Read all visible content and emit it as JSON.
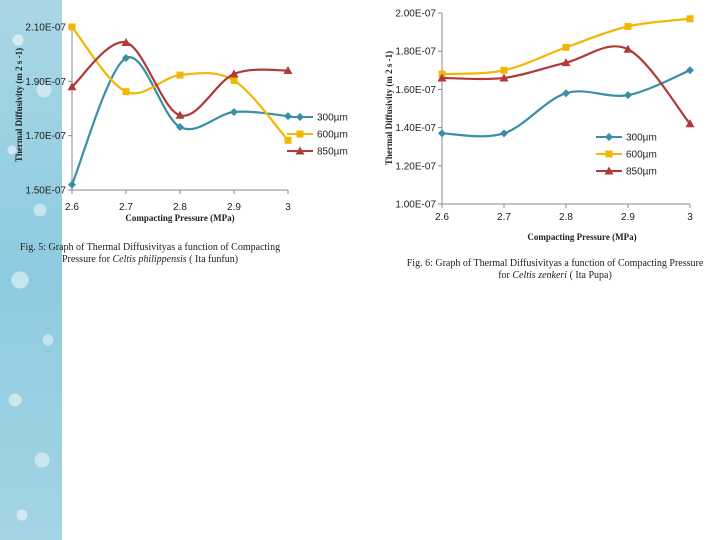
{
  "chart_data": [
    {
      "type": "line",
      "title": "",
      "xlabel": "Compacting Pressure (MPa)",
      "ylabel": "Thermal Diffusivity (m 2 s -1)",
      "x": [
        2.6,
        2.7,
        2.8,
        2.9,
        3
      ],
      "xlim": [
        2.6,
        3
      ],
      "ylim": [
        1.5e-07,
        2.1e-07
      ],
      "x_ticks": [
        "2.6",
        "2.7",
        "2.8",
        "2.9",
        "3"
      ],
      "y_ticks": [
        "1.50E-07",
        "1.70E-07",
        "1.90E-07",
        "2.10E-07"
      ],
      "y_tick_values": [
        1.5e-07,
        1.7e-07,
        1.9e-07,
        2.1e-07
      ],
      "legend_position": "right",
      "series": [
        {
          "name": "300µm",
          "color": "#3a8fa6",
          "marker": "diamond",
          "values": [
            1.52e-07,
            1.986e-07,
            1.732e-07,
            1.787e-07,
            1.772e-07
          ]
        },
        {
          "name": "600µm",
          "color": "#f2b705",
          "marker": "square",
          "values": [
            2.1e-07,
            1.862e-07,
            1.923e-07,
            1.903e-07,
            1.683e-07
          ]
        },
        {
          "name": "850µm",
          "color": "#b03a3a",
          "marker": "triangle",
          "values": [
            1.88e-07,
            2.043e-07,
            1.775e-07,
            1.927e-07,
            1.94e-07
          ]
        }
      ]
    },
    {
      "type": "line",
      "title": "",
      "xlabel": "Compacting Pressure (MPa)",
      "ylabel": "Thermal Diffusivity (m 2 s -1)",
      "x": [
        2.6,
        2.7,
        2.8,
        2.9,
        3
      ],
      "xlim": [
        2.6,
        3
      ],
      "ylim": [
        1e-07,
        2e-07
      ],
      "x_ticks": [
        "2.6",
        "2.7",
        "2.8",
        "2.9",
        "3"
      ],
      "y_ticks": [
        "1.00E-07",
        "1.20E-07",
        "1.40E-07",
        "1.60E-07",
        "1.80E-07",
        "2.00E-07"
      ],
      "y_tick_values": [
        1e-07,
        1.2e-07,
        1.4e-07,
        1.6e-07,
        1.8e-07,
        2e-07
      ],
      "legend_position": "right",
      "series": [
        {
          "name": "300µm",
          "color": "#3a8fa6",
          "marker": "diamond",
          "values": [
            1.37e-07,
            1.37e-07,
            1.58e-07,
            1.57e-07,
            1.7e-07
          ]
        },
        {
          "name": "600µm",
          "color": "#f2b705",
          "marker": "square",
          "values": [
            1.68e-07,
            1.7e-07,
            1.82e-07,
            1.93e-07,
            1.97e-07
          ]
        },
        {
          "name": "850µm",
          "color": "#b03a3a",
          "marker": "triangle",
          "values": [
            1.66e-07,
            1.66e-07,
            1.74e-07,
            1.81e-07,
            1.42e-07
          ]
        }
      ]
    }
  ],
  "captions": {
    "fig5": {
      "line1": "Fig. 5: Graph of Thermal Diffusivityas a function of Compacting",
      "line2_prefix": "Pressure for ",
      "line2_species": "Celtis philippensis",
      "line2_suffix": " ( Ita funfun)"
    },
    "fig6": {
      "line1": "Fig. 6: Graph of Thermal Diffusivityas a function of Compacting Pressure",
      "line2_prefix": "for ",
      "line2_species": "Celtis zenkeri",
      "line2_suffix": " ( Ita Pupa)"
    }
  }
}
